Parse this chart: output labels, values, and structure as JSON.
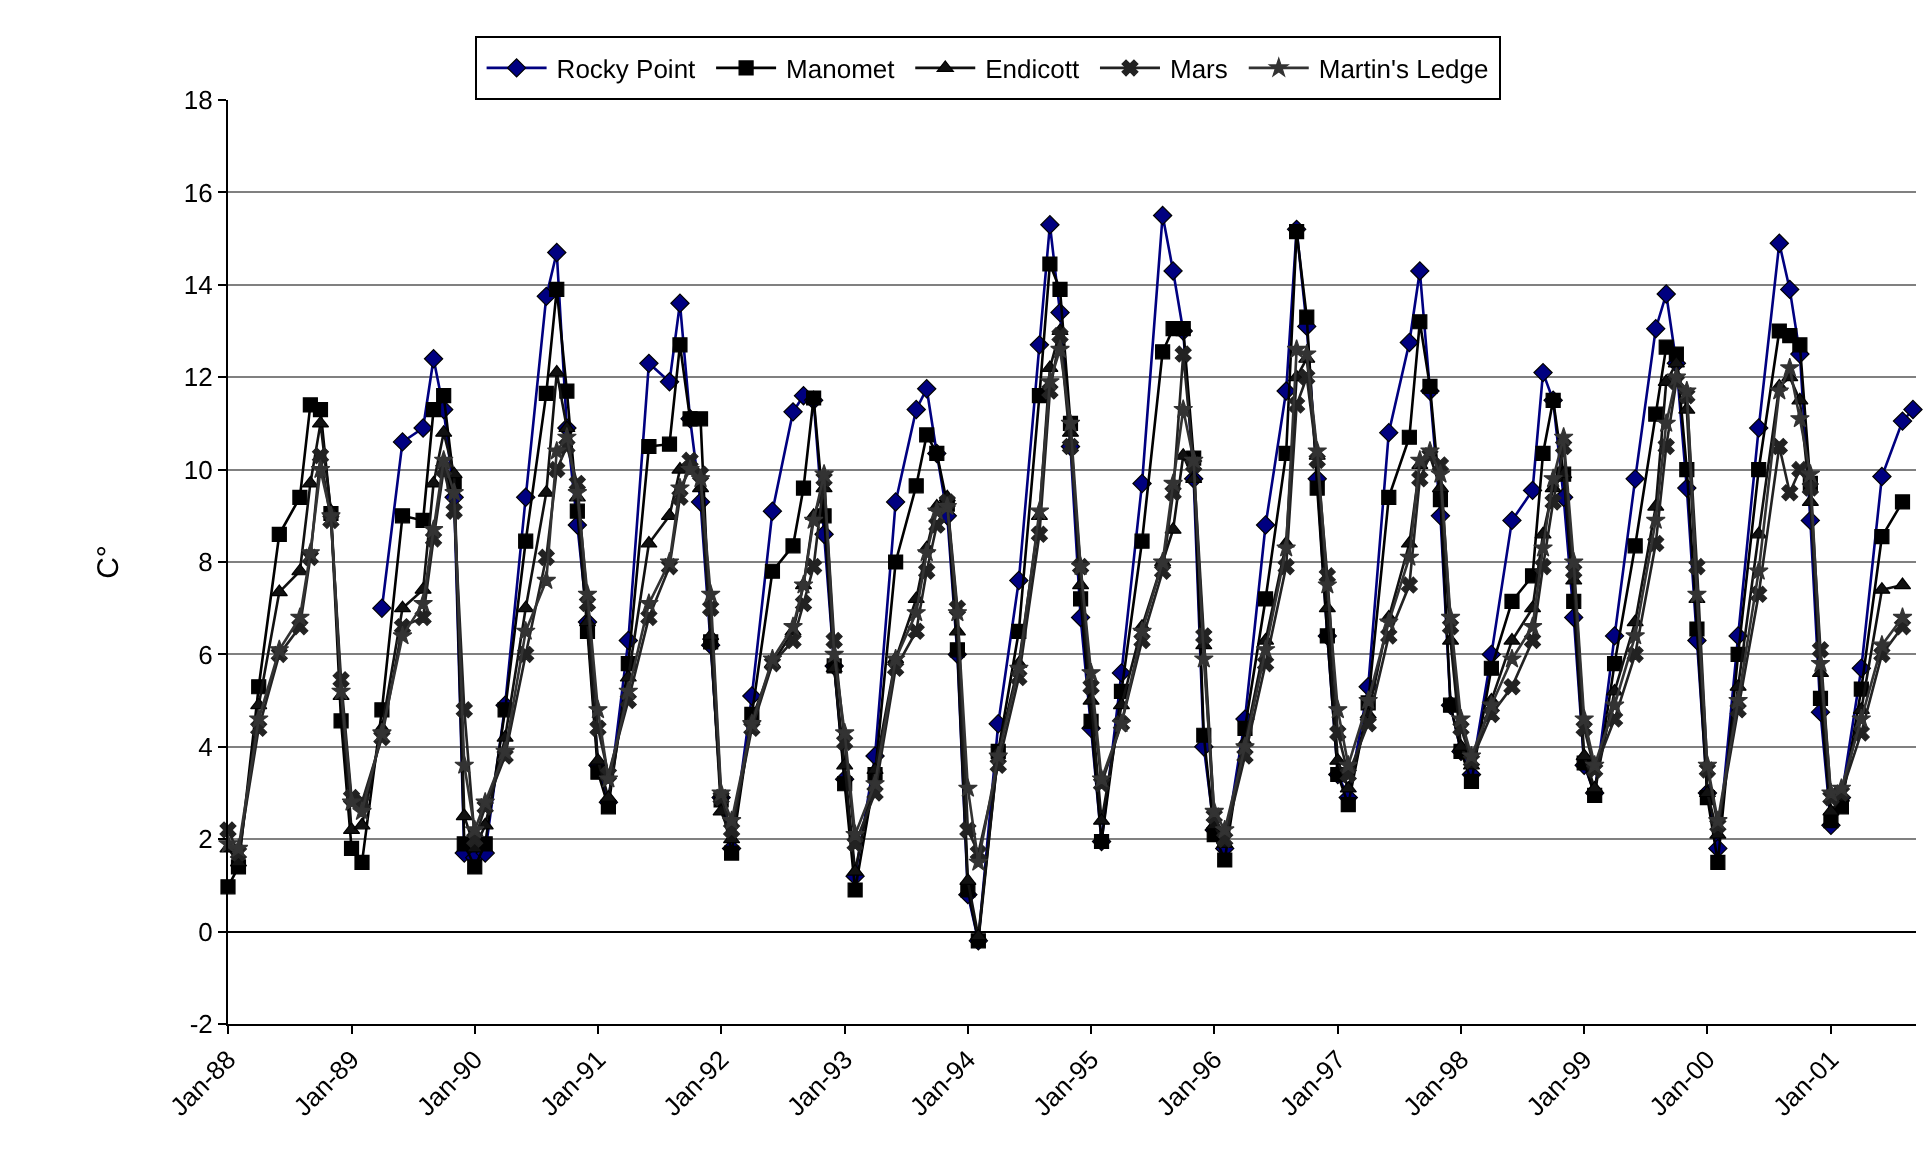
{
  "chart_data": {
    "type": "line",
    "ylabel": "C°",
    "x": [
      "1988-01",
      "1988-02",
      "1988-04",
      "1988-06",
      "1988-08",
      "1988-09",
      "1988-10",
      "1988-11",
      "1988-12",
      "1989-01",
      "1989-02",
      "1989-04",
      "1989-06",
      "1989-08",
      "1989-09",
      "1989-10",
      "1989-11",
      "1989-12",
      "1990-01",
      "1990-02",
      "1990-04",
      "1990-06",
      "1990-08",
      "1990-09",
      "1990-10",
      "1990-11",
      "1990-12",
      "1991-01",
      "1991-02",
      "1991-04",
      "1991-06",
      "1991-08",
      "1991-09",
      "1991-10",
      "1991-11",
      "1991-12",
      "1992-01",
      "1992-02",
      "1992-04",
      "1992-06",
      "1992-08",
      "1992-09",
      "1992-10",
      "1992-11",
      "1992-12",
      "1993-01",
      "1993-02",
      "1993-04",
      "1993-06",
      "1993-08",
      "1993-09",
      "1993-10",
      "1993-11",
      "1993-12",
      "1994-01",
      "1994-02",
      "1994-04",
      "1994-06",
      "1994-08",
      "1994-09",
      "1994-10",
      "1994-11",
      "1994-12",
      "1995-01",
      "1995-02",
      "1995-04",
      "1995-06",
      "1995-08",
      "1995-09",
      "1995-10",
      "1995-11",
      "1995-12",
      "1996-01",
      "1996-02",
      "1996-04",
      "1996-06",
      "1996-08",
      "1996-09",
      "1996-10",
      "1996-11",
      "1996-12",
      "1997-01",
      "1997-02",
      "1997-04",
      "1997-06",
      "1997-08",
      "1997-09",
      "1997-10",
      "1997-11",
      "1997-12",
      "1998-01",
      "1998-02",
      "1998-04",
      "1998-06",
      "1998-08",
      "1998-09",
      "1998-10",
      "1998-11",
      "1998-12",
      "1999-01",
      "1999-02",
      "1999-04",
      "1999-06",
      "1999-08",
      "1999-09",
      "1999-10",
      "1999-11",
      "1999-12",
      "2000-01",
      "2000-02",
      "2000-04",
      "2000-06",
      "2000-08",
      "2000-09",
      "2000-10",
      "2000-11",
      "2000-12",
      "2001-01",
      "2001-02",
      "2001-04",
      "2001-06",
      "2001-08",
      "2001-09"
    ],
    "series": [
      {
        "name": "Rocky Point",
        "color": "#000080",
        "marker": "diamond",
        "values": [
          null,
          null,
          null,
          null,
          null,
          null,
          null,
          null,
          null,
          null,
          null,
          7.0,
          10.6,
          10.9,
          12.4,
          11.3,
          9.4,
          1.7,
          1.6,
          1.7,
          4.9,
          9.4,
          13.75,
          14.7,
          10.9,
          8.8,
          6.7,
          3.6,
          2.8,
          6.3,
          12.3,
          11.9,
          13.6,
          11.1,
          9.3,
          6.2,
          2.9,
          1.8,
          5.1,
          9.1,
          11.25,
          11.6,
          11.5,
          8.6,
          5.75,
          3.3,
          1.2,
          3.8,
          9.3,
          11.3,
          11.75,
          10.35,
          9.0,
          6.0,
          0.8,
          -0.2,
          4.5,
          7.6,
          12.7,
          15.3,
          13.4,
          10.5,
          6.8,
          4.4,
          1.95,
          5.6,
          9.7,
          15.5,
          14.3,
          13.0,
          9.8,
          4.0,
          2.2,
          1.8,
          4.6,
          8.8,
          11.7,
          15.2,
          13.1,
          9.8,
          6.4,
          3.4,
          2.9,
          5.3,
          10.8,
          12.75,
          14.3,
          11.7,
          9.0,
          4.9,
          3.9,
          3.4,
          6.0,
          8.9,
          9.55,
          12.1,
          11.5,
          9.4,
          6.8,
          3.6,
          3.0,
          6.4,
          9.8,
          13.05,
          13.8,
          12.3,
          9.6,
          6.3,
          3.0,
          1.8,
          6.4,
          10.9,
          14.9,
          13.9,
          12.5,
          8.9,
          4.75,
          2.3,
          2.9,
          5.7,
          9.85,
          11.05,
          11.3
        ]
      },
      {
        "name": "Manomet",
        "color": "#000000",
        "marker": "square",
        "values": [
          0.97,
          1.4,
          5.3,
          8.6,
          9.4,
          11.4,
          11.3,
          9.05,
          4.56,
          1.8,
          1.5,
          4.8,
          9.0,
          8.9,
          11.3,
          11.6,
          9.7,
          1.9,
          1.4,
          1.9,
          4.8,
          8.45,
          11.65,
          13.9,
          11.7,
          9.1,
          6.5,
          3.45,
          2.7,
          5.8,
          10.5,
          10.55,
          12.7,
          11.1,
          11.1,
          6.27,
          2.85,
          1.7,
          4.7,
          7.8,
          8.35,
          9.6,
          11.55,
          9.0,
          5.75,
          3.2,
          0.9,
          3.4,
          8.0,
          9.65,
          10.75,
          10.35,
          9.25,
          6.1,
          0.9,
          -0.2,
          3.9,
          6.5,
          11.6,
          14.45,
          13.9,
          11.0,
          7.2,
          4.55,
          1.95,
          5.2,
          8.45,
          12.55,
          13.05,
          13.05,
          10.25,
          4.25,
          2.1,
          1.55,
          4.4,
          7.2,
          10.35,
          15.15,
          13.3,
          9.6,
          6.4,
          3.4,
          2.75,
          4.95,
          9.4,
          10.7,
          13.2,
          11.8,
          9.35,
          4.9,
          3.9,
          3.25,
          5.7,
          7.15,
          7.7,
          10.35,
          11.5,
          9.9,
          7.15,
          3.65,
          2.95,
          5.8,
          8.35,
          11.2,
          12.65,
          12.5,
          10.0,
          6.55,
          2.9,
          1.5,
          6.0,
          10.0,
          13.0,
          12.9,
          12.7,
          9.7,
          5.05,
          2.4,
          2.7,
          5.25,
          8.55,
          9.3,
          null
        ]
      },
      {
        "name": "Endicott",
        "color": "#111111",
        "marker": "triangle",
        "values": [
          1.8,
          1.5,
          4.9,
          7.35,
          7.8,
          9.7,
          11.0,
          9.1,
          5.1,
          2.2,
          2.3,
          4.4,
          7.0,
          7.4,
          9.7,
          10.8,
          9.9,
          2.5,
          1.8,
          2.3,
          4.2,
          7.0,
          9.5,
          12.1,
          10.9,
          9.4,
          6.7,
          3.7,
          2.9,
          5.5,
          8.4,
          9.0,
          10.0,
          10.1,
          9.6,
          6.4,
          2.6,
          2.0,
          4.6,
          5.8,
          6.5,
          7.5,
          9.0,
          9.6,
          5.7,
          3.6,
          1.3,
          3.5,
          5.9,
          7.2,
          8.3,
          9.2,
          9.4,
          6.5,
          1.1,
          -0.1,
          3.9,
          5.8,
          9.0,
          12.2,
          13.0,
          10.8,
          7.5,
          5.0,
          2.4,
          4.9,
          6.6,
          8.0,
          8.7,
          10.3,
          9.8,
          6.2,
          2.3,
          1.9,
          4.1,
          6.3,
          8.4,
          12.0,
          12.4,
          10.3,
          7.0,
          3.7,
          3.1,
          4.7,
          6.8,
          8.4,
          10.1,
          10.3,
          9.6,
          6.3,
          4.0,
          3.6,
          5.0,
          6.3,
          7.0,
          8.6,
          9.6,
          9.9,
          7.6,
          3.8,
          3.1,
          5.2,
          6.7,
          9.2,
          11.9,
          12.3,
          11.3,
          7.2,
          3.0,
          2.1,
          5.3,
          8.6,
          11.8,
          12.0,
          11.5,
          9.3,
          5.6,
          2.6,
          2.9,
          4.8,
          7.4,
          7.5,
          null
        ]
      },
      {
        "name": "Mars",
        "color": "#222222",
        "marker": "cross",
        "values": [
          2.2,
          1.7,
          4.4,
          6.0,
          6.6,
          8.1,
          10.3,
          8.9,
          5.45,
          2.9,
          2.8,
          4.2,
          6.6,
          6.8,
          8.5,
          10.0,
          9.1,
          4.8,
          2.0,
          2.7,
          3.8,
          6.0,
          8.1,
          10.0,
          10.5,
          9.7,
          7.1,
          4.4,
          3.4,
          5.0,
          6.8,
          7.9,
          9.4,
          10.2,
          9.9,
          7.0,
          2.9,
          2.2,
          4.4,
          5.8,
          6.3,
          7.1,
          7.9,
          9.8,
          6.3,
          4.1,
          1.9,
          3.0,
          5.7,
          6.5,
          7.8,
          8.8,
          9.3,
          7.0,
          2.2,
          1.7,
          3.6,
          5.5,
          8.6,
          11.7,
          12.9,
          10.5,
          7.9,
          5.3,
          3.2,
          4.5,
          6.3,
          7.8,
          9.5,
          12.5,
          10.1,
          6.4,
          2.5,
          2.0,
          3.8,
          5.8,
          7.9,
          11.4,
          12.0,
          10.2,
          7.7,
          4.3,
          3.4,
          4.5,
          6.4,
          7.5,
          9.8,
          10.3,
          10.1,
          6.6,
          4.4,
          3.7,
          4.7,
          5.3,
          6.3,
          7.9,
          9.3,
          10.5,
          7.8,
          4.4,
          3.5,
          4.6,
          6.0,
          8.4,
          10.5,
          11.9,
          11.6,
          7.9,
          3.5,
          2.3,
          4.8,
          7.3,
          10.5,
          9.5,
          10.0,
          9.6,
          6.1,
          2.9,
          3.0,
          4.3,
          6.0,
          6.6,
          null
        ]
      },
      {
        "name": "Martin's Ledge",
        "color": "#333333",
        "marker": "star",
        "values": [
          1.9,
          1.8,
          4.6,
          6.1,
          6.8,
          8.2,
          10.0,
          9.0,
          5.2,
          2.8,
          2.6,
          4.3,
          6.4,
          7.1,
          8.7,
          10.2,
          9.5,
          3.6,
          2.2,
          2.8,
          3.9,
          6.5,
          7.6,
          10.4,
          10.7,
          9.5,
          7.3,
          4.8,
          3.3,
          5.2,
          7.1,
          8.0,
          9.6,
          10.0,
          9.8,
          7.3,
          3.0,
          2.4,
          4.5,
          5.9,
          6.6,
          7.5,
          8.9,
          9.9,
          6.0,
          4.3,
          2.1,
          3.2,
          5.9,
          6.9,
          8.2,
          9.1,
          9.2,
          6.9,
          3.1,
          1.5,
          3.8,
          5.7,
          9.1,
          11.9,
          12.6,
          11.0,
          7.9,
          5.6,
          3.3,
          4.5,
          6.5,
          8.0,
          9.7,
          11.3,
          10.2,
          5.9,
          2.6,
          2.2,
          4.0,
          6.1,
          8.3,
          12.6,
          12.5,
          10.4,
          7.5,
          4.8,
          3.6,
          5.0,
          6.7,
          8.1,
          10.2,
          10.4,
          9.9,
          6.8,
          4.6,
          3.8,
          4.9,
          5.9,
          6.6,
          8.3,
          9.8,
          10.7,
          8.0,
          4.6,
          3.6,
          4.9,
          6.4,
          8.9,
          11.0,
          12.0,
          11.7,
          7.3,
          3.6,
          2.4,
          5.0,
          7.8,
          11.7,
          12.2,
          11.1,
          9.9,
          5.8,
          3.0,
          3.1,
          4.6,
          6.2,
          6.8,
          null
        ]
      }
    ],
    "xlim": [
      "1988-01-01",
      "2001-09-10"
    ],
    "xticks": [
      {
        "value": "1988-01",
        "label": "Jan-88"
      },
      {
        "value": "1989-01",
        "label": "Jan-89"
      },
      {
        "value": "1990-01",
        "label": "Jan-90"
      },
      {
        "value": "1991-01",
        "label": "Jan-91"
      },
      {
        "value": "1992-01",
        "label": "Jan-92"
      },
      {
        "value": "1993-01",
        "label": "Jan-93"
      },
      {
        "value": "1994-01",
        "label": "Jan-94"
      },
      {
        "value": "1995-01",
        "label": "Jan-95"
      },
      {
        "value": "1996-01",
        "label": "Jan-96"
      },
      {
        "value": "1997-01",
        "label": "Jan-97"
      },
      {
        "value": "1998-01",
        "label": "Jan-98"
      },
      {
        "value": "1999-01",
        "label": "Jan-99"
      },
      {
        "value": "2000-01",
        "label": "Jan-00"
      },
      {
        "value": "2001-01",
        "label": "Jan-01"
      }
    ],
    "ylim": [
      -2,
      18
    ],
    "yticks": [
      -2,
      0,
      2,
      4,
      6,
      8,
      10,
      12,
      14,
      16,
      18
    ],
    "grid": "y",
    "legend": "top",
    "line_style": "solid"
  }
}
